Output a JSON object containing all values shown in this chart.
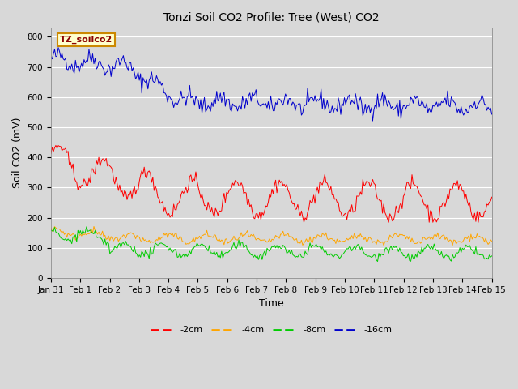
{
  "title": "Tonzi Soil CO2 Profile: Tree (West) CO2",
  "ylabel": "Soil CO2 (mV)",
  "xlabel": "Time",
  "legend_label": "TZ_soilco2",
  "series_labels": [
    "-2cm",
    "-4cm",
    "-8cm",
    "-16cm"
  ],
  "series_colors": [
    "#ff0000",
    "#ffa500",
    "#00cc00",
    "#0000cc"
  ],
  "ylim": [
    0,
    830
  ],
  "yticks": [
    0,
    100,
    200,
    300,
    400,
    500,
    600,
    700,
    800
  ],
  "bg_color": "#d8d8d8",
  "plot_bg_color": "#d8d8d8",
  "legend_box_color": "#ffffcc",
  "legend_box_edge": "#cc8800",
  "n_points": 360,
  "start_day": 0,
  "end_day": 15.0,
  "title_fontsize": 10,
  "axis_fontsize": 9,
  "tick_fontsize": 7.5,
  "legend_fontsize": 8
}
